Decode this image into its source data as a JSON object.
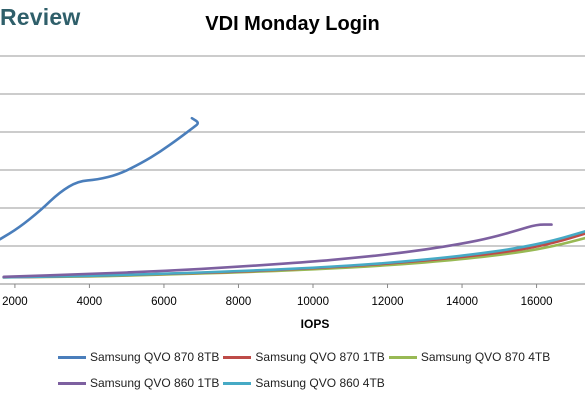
{
  "brand": "Review",
  "chart_data": {
    "type": "line",
    "title": "VDI Monday Login",
    "xlabel": "IOPS",
    "ylabel": "",
    "xlim": [
      1600,
      17300
    ],
    "x_ticks": [
      2000,
      4000,
      6000,
      8000,
      10000,
      12000,
      14000,
      16000
    ],
    "y_gridlines": 6,
    "grid": true,
    "legend_position": "bottom",
    "series": [
      {
        "name": "Samsung QVO 870 8TB",
        "color": "#4a7ebb",
        "x": [
          1600,
          2100,
          2700,
          3200,
          3700,
          4200,
          4800,
          5400,
          5900,
          6400,
          6800,
          6950,
          6750
        ],
        "y": [
          0.2,
          0.25,
          0.33,
          0.41,
          0.46,
          0.465,
          0.49,
          0.54,
          0.59,
          0.65,
          0.7,
          0.72,
          0.74
        ]
      },
      {
        "name": "Samsung QVO 870 1TB",
        "color": "#be4b48",
        "x": [
          1700,
          4000,
          6000,
          8000,
          10000,
          12000,
          14000,
          15500,
          16500,
          17300
        ],
        "y": [
          0.03,
          0.035,
          0.045,
          0.055,
          0.07,
          0.09,
          0.12,
          0.15,
          0.185,
          0.225
        ]
      },
      {
        "name": "Samsung QVO 870 4TB",
        "color": "#98b954",
        "x": [
          1700,
          4000,
          6000,
          8000,
          10000,
          12000,
          14000,
          15500,
          16500,
          17300
        ],
        "y": [
          0.03,
          0.033,
          0.042,
          0.052,
          0.065,
          0.083,
          0.11,
          0.14,
          0.17,
          0.205
        ]
      },
      {
        "name": "Samsung QVO 860 1TB",
        "color": "#7d60a0",
        "x": [
          1700,
          4000,
          6000,
          8000,
          10000,
          11000,
          12000,
          13000,
          14000,
          14800,
          15500,
          16000,
          16400
        ],
        "y": [
          0.032,
          0.045,
          0.058,
          0.077,
          0.1,
          0.115,
          0.132,
          0.153,
          0.18,
          0.207,
          0.24,
          0.265,
          0.265
        ]
      },
      {
        "name": "Samsung QVO 860 4TB",
        "color": "#46aac5",
        "x": [
          1700,
          4000,
          6000,
          8000,
          10000,
          12000,
          14000,
          15500,
          16500,
          17300
        ],
        "y": [
          0.03,
          0.036,
          0.046,
          0.057,
          0.072,
          0.093,
          0.125,
          0.16,
          0.195,
          0.235
        ]
      }
    ]
  }
}
